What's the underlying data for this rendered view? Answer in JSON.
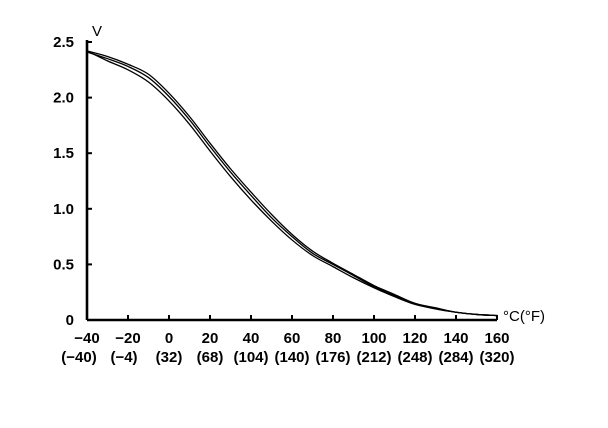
{
  "chart_data": {
    "type": "line",
    "title": "",
    "xlabel": "°C(°F)",
    "ylabel": "V",
    "xlim": [
      -40,
      160
    ],
    "ylim": [
      0,
      2.5
    ],
    "grid": false,
    "legend": "none",
    "x_ticks": [
      {
        "value": -40,
        "label": "−40",
        "sublabel": "(−40)"
      },
      {
        "value": -20,
        "label": "−20",
        "sublabel": "(−4)"
      },
      {
        "value": 0,
        "label": "0",
        "sublabel": "(32)"
      },
      {
        "value": 20,
        "label": "20",
        "sublabel": "(68)"
      },
      {
        "value": 40,
        "label": "40",
        "sublabel": "(104)"
      },
      {
        "value": 60,
        "label": "60",
        "sublabel": "(140)"
      },
      {
        "value": 80,
        "label": "80",
        "sublabel": "(176)"
      },
      {
        "value": 100,
        "label": "100",
        "sublabel": "(212)"
      },
      {
        "value": 120,
        "label": "120",
        "sublabel": "(248)"
      },
      {
        "value": 140,
        "label": "140",
        "sublabel": "(284)"
      },
      {
        "value": 160,
        "label": "160",
        "sublabel": "(320)"
      }
    ],
    "y_ticks": [
      {
        "value": 0,
        "label": "0"
      },
      {
        "value": 0.5,
        "label": "0.5"
      },
      {
        "value": 1.0,
        "label": "1.0"
      },
      {
        "value": 1.5,
        "label": "1.5"
      },
      {
        "value": 2.0,
        "label": "2.0"
      },
      {
        "value": 2.5,
        "label": "2.5"
      }
    ],
    "series": [
      {
        "x": [
          -40,
          -30,
          -20,
          -10,
          0,
          10,
          20,
          30,
          40,
          50,
          60,
          70,
          80,
          90,
          100,
          110,
          120,
          130,
          140,
          150,
          160
        ],
        "y": [
          2.42,
          2.33,
          2.25,
          2.14,
          1.97,
          1.76,
          1.52,
          1.29,
          1.08,
          0.89,
          0.72,
          0.58,
          0.48,
          0.38,
          0.29,
          0.21,
          0.14,
          0.1,
          0.07,
          0.05,
          0.04
        ]
      },
      {
        "x": [
          -40,
          -30,
          -20,
          -10,
          0,
          10,
          20,
          30,
          40,
          50,
          60,
          70,
          80,
          90,
          100,
          110,
          120,
          130,
          140,
          150,
          160
        ],
        "y": [
          2.41,
          2.35,
          2.28,
          2.18,
          2.01,
          1.8,
          1.56,
          1.33,
          1.12,
          0.92,
          0.75,
          0.6,
          0.5,
          0.4,
          0.3,
          0.22,
          0.15,
          0.1,
          0.07,
          0.05,
          0.04
        ]
      },
      {
        "x": [
          -40,
          -30,
          -20,
          -10,
          0,
          10,
          20,
          30,
          40,
          50,
          60,
          70,
          80,
          90,
          100,
          110,
          120,
          130,
          140,
          150,
          160
        ],
        "y": [
          2.42,
          2.37,
          2.3,
          2.21,
          2.04,
          1.83,
          1.59,
          1.36,
          1.15,
          0.95,
          0.77,
          0.62,
          0.51,
          0.41,
          0.31,
          0.23,
          0.15,
          0.11,
          0.07,
          0.05,
          0.04
        ]
      }
    ]
  }
}
